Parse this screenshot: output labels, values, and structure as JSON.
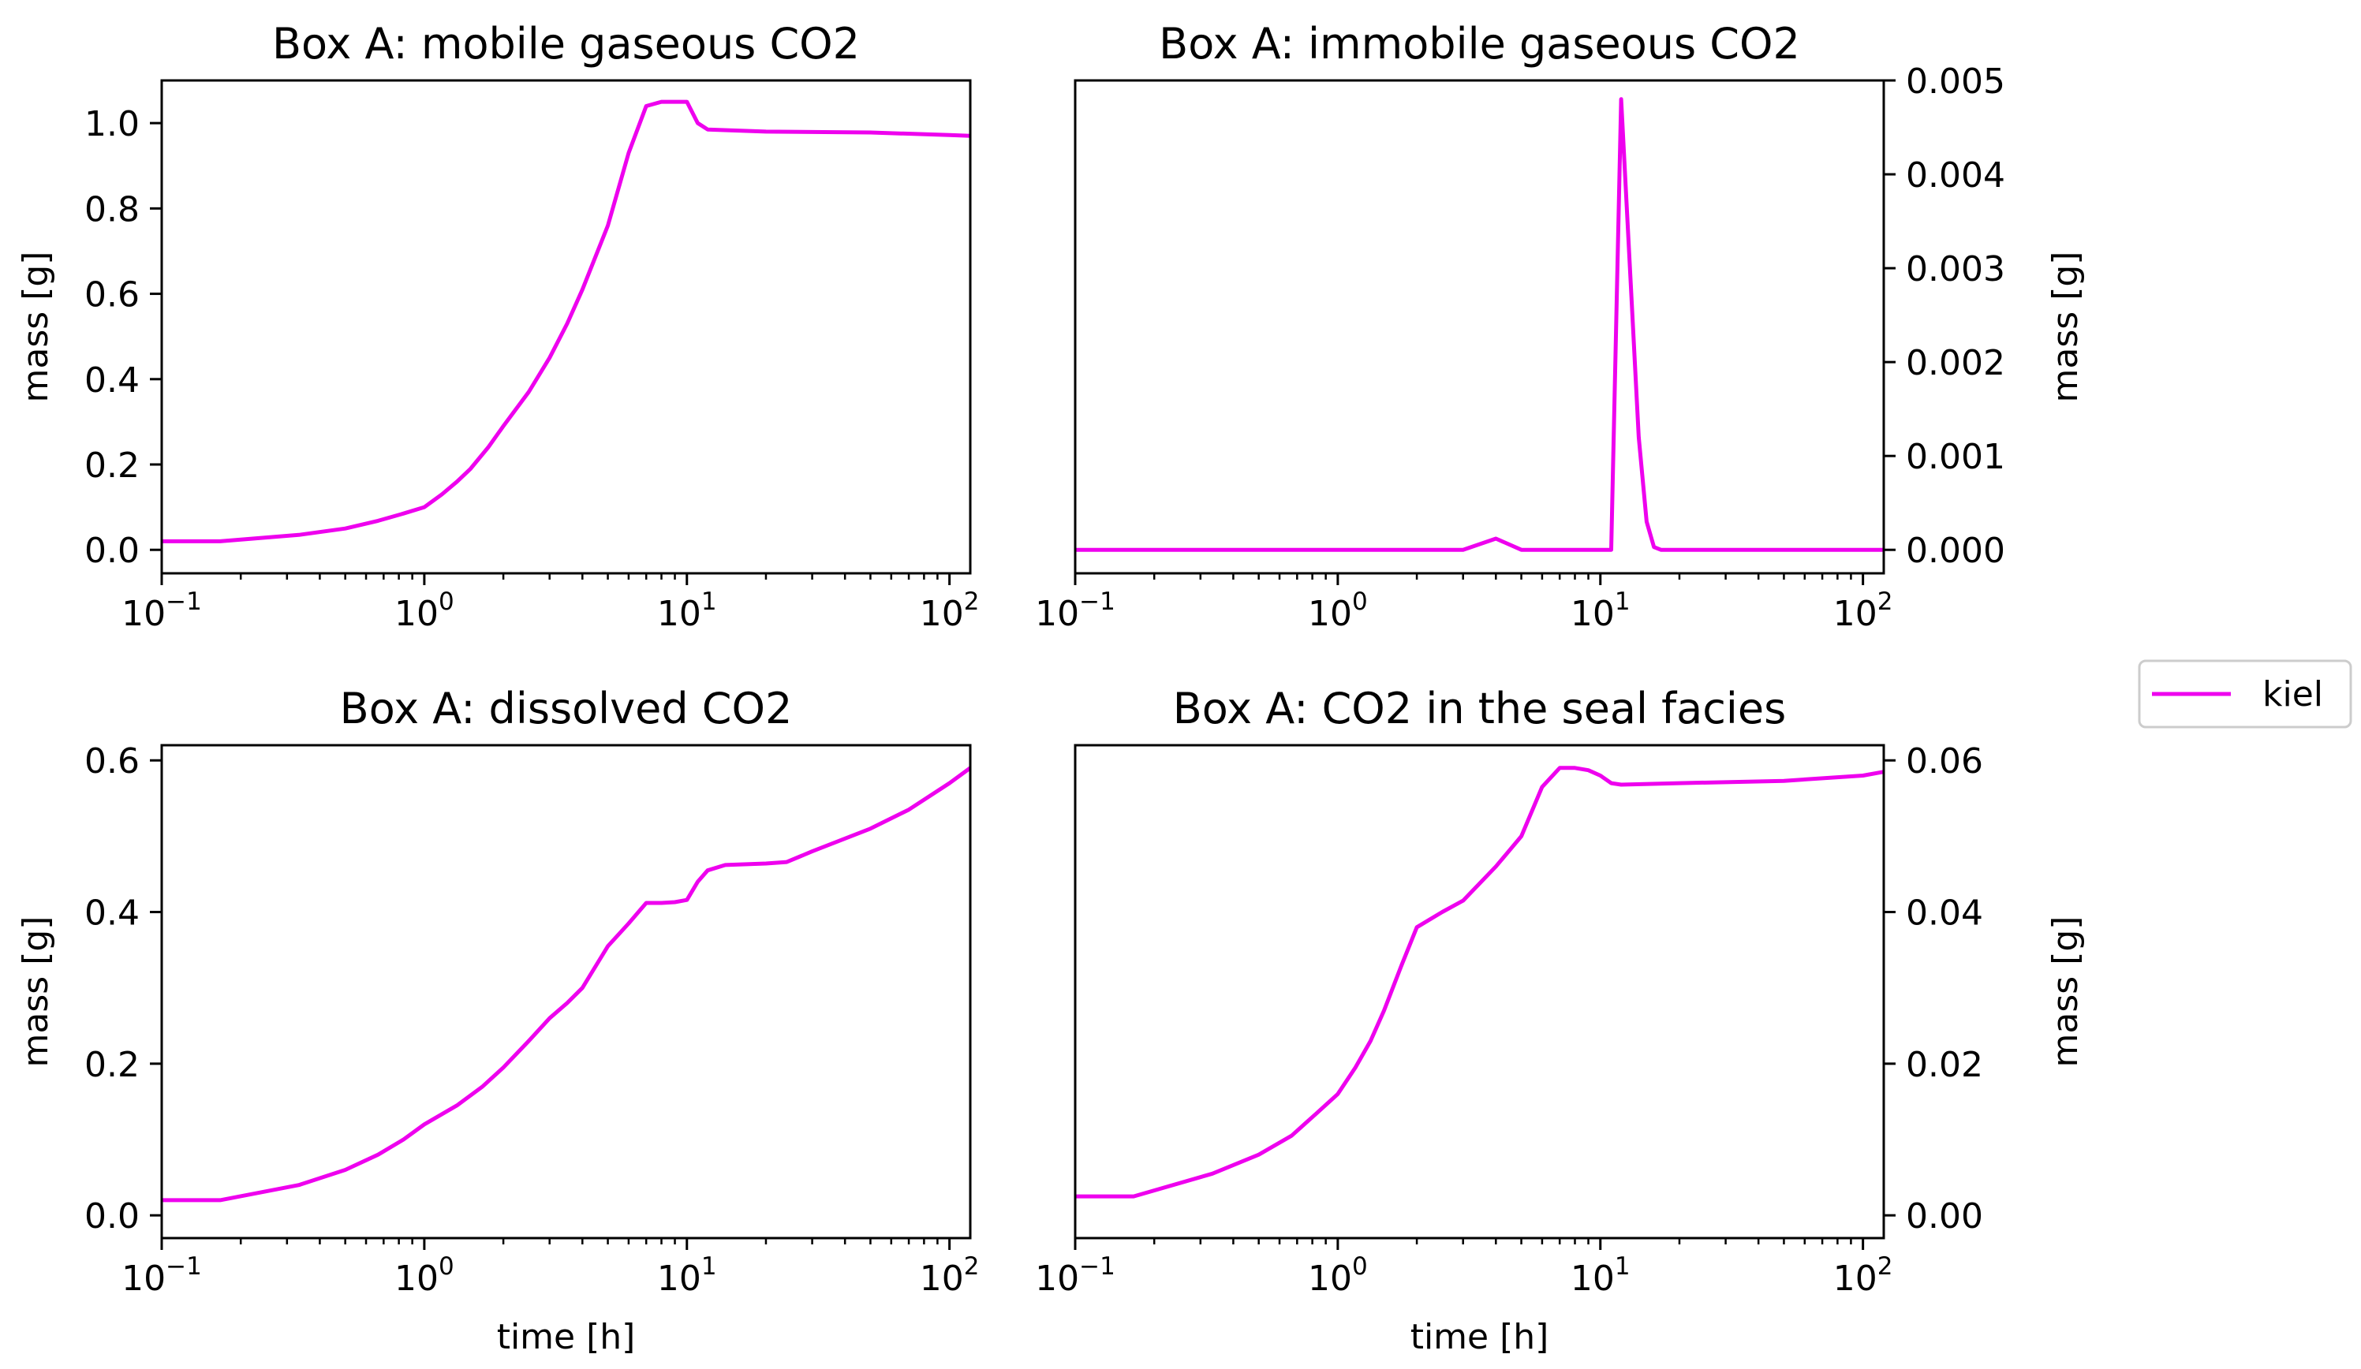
{
  "legend": {
    "label": "kiel",
    "color": "#ee00ee"
  },
  "chart_data": [
    {
      "type": "line",
      "title": "Box A: mobile gaseous CO2",
      "xlabel": "",
      "ylabel": "mass [g]",
      "xscale": "log",
      "xlim": [
        0.1,
        120
      ],
      "ylim": [
        -0.055,
        1.1
      ],
      "y_axis_side": "left",
      "xticks": [
        {
          "value": 0.1,
          "base": "10",
          "exp": "−1"
        },
        {
          "value": 1,
          "base": "10",
          "exp": "0"
        },
        {
          "value": 10,
          "base": "10",
          "exp": "1"
        },
        {
          "value": 100,
          "base": "10",
          "exp": "2"
        }
      ],
      "yticks": [
        {
          "value": 0.0,
          "label": "0.0"
        },
        {
          "value": 0.2,
          "label": "0.2"
        },
        {
          "value": 0.4,
          "label": "0.4"
        },
        {
          "value": 0.6,
          "label": "0.6"
        },
        {
          "value": 0.8,
          "label": "0.8"
        },
        {
          "value": 1.0,
          "label": "1.0"
        }
      ],
      "series": [
        {
          "name": "kiel",
          "color": "#ee00ee",
          "points": [
            [
              0.1,
              0.02
            ],
            [
              0.167,
              0.02
            ],
            [
              0.333,
              0.035
            ],
            [
              0.5,
              0.05
            ],
            [
              0.667,
              0.068
            ],
            [
              0.833,
              0.085
            ],
            [
              1.0,
              0.1
            ],
            [
              1.167,
              0.13
            ],
            [
              1.333,
              0.16
            ],
            [
              1.5,
              0.19
            ],
            [
              1.75,
              0.24
            ],
            [
              2.0,
              0.29
            ],
            [
              2.5,
              0.37
            ],
            [
              3.0,
              0.45
            ],
            [
              3.5,
              0.53
            ],
            [
              4.0,
              0.61
            ],
            [
              5.0,
              0.76
            ],
            [
              6.0,
              0.93
            ],
            [
              7.0,
              1.04
            ],
            [
              8.0,
              1.05
            ],
            [
              9.0,
              1.05
            ],
            [
              10.0,
              1.05
            ],
            [
              11.0,
              1.0
            ],
            [
              12.0,
              0.985
            ],
            [
              20.0,
              0.98
            ],
            [
              50.0,
              0.978
            ],
            [
              100.0,
              0.972
            ],
            [
              120.0,
              0.97
            ]
          ]
        }
      ]
    },
    {
      "type": "line",
      "title": "Box A: immobile gaseous CO2",
      "xlabel": "",
      "ylabel": "mass [g]",
      "xscale": "log",
      "xlim": [
        0.1,
        120
      ],
      "ylim": [
        -0.00025,
        0.005
      ],
      "y_axis_side": "right",
      "xticks": [
        {
          "value": 0.1,
          "base": "10",
          "exp": "−1"
        },
        {
          "value": 1,
          "base": "10",
          "exp": "0"
        },
        {
          "value": 10,
          "base": "10",
          "exp": "1"
        },
        {
          "value": 100,
          "base": "10",
          "exp": "2"
        }
      ],
      "yticks": [
        {
          "value": 0.0,
          "label": "0.000"
        },
        {
          "value": 0.001,
          "label": "0.001"
        },
        {
          "value": 0.002,
          "label": "0.002"
        },
        {
          "value": 0.003,
          "label": "0.003"
        },
        {
          "value": 0.004,
          "label": "0.004"
        },
        {
          "value": 0.005,
          "label": "0.005"
        }
      ],
      "series": [
        {
          "name": "kiel",
          "color": "#ee00ee",
          "points": [
            [
              0.1,
              0.0
            ],
            [
              3.0,
              0.0
            ],
            [
              4.0,
              0.00012
            ],
            [
              5.0,
              0.0
            ],
            [
              11.0,
              0.0
            ],
            [
              12.0,
              0.0048
            ],
            [
              14.0,
              0.0012
            ],
            [
              15.0,
              0.0003
            ],
            [
              16.0,
              3e-05
            ],
            [
              17.0,
              0.0
            ],
            [
              120.0,
              0.0
            ]
          ]
        }
      ]
    },
    {
      "type": "line",
      "title": "Box A: dissolved CO2",
      "xlabel": "time [h]",
      "ylabel": "mass [g]",
      "xscale": "log",
      "xlim": [
        0.1,
        120
      ],
      "ylim": [
        -0.03,
        0.62
      ],
      "y_axis_side": "left",
      "xticks": [
        {
          "value": 0.1,
          "base": "10",
          "exp": "−1"
        },
        {
          "value": 1,
          "base": "10",
          "exp": "0"
        },
        {
          "value": 10,
          "base": "10",
          "exp": "1"
        },
        {
          "value": 100,
          "base": "10",
          "exp": "2"
        }
      ],
      "yticks": [
        {
          "value": 0.0,
          "label": "0.0"
        },
        {
          "value": 0.2,
          "label": "0.2"
        },
        {
          "value": 0.4,
          "label": "0.4"
        },
        {
          "value": 0.6,
          "label": "0.6"
        }
      ],
      "series": [
        {
          "name": "kiel",
          "color": "#ee00ee",
          "points": [
            [
              0.1,
              0.02
            ],
            [
              0.167,
              0.02
            ],
            [
              0.333,
              0.04
            ],
            [
              0.5,
              0.06
            ],
            [
              0.667,
              0.08
            ],
            [
              0.833,
              0.1
            ],
            [
              1.0,
              0.12
            ],
            [
              1.333,
              0.145
            ],
            [
              1.667,
              0.17
            ],
            [
              2.0,
              0.195
            ],
            [
              2.5,
              0.23
            ],
            [
              3.0,
              0.26
            ],
            [
              3.5,
              0.28
            ],
            [
              4.0,
              0.3
            ],
            [
              5.0,
              0.355
            ],
            [
              6.0,
              0.385
            ],
            [
              7.0,
              0.412
            ],
            [
              8.0,
              0.412
            ],
            [
              9.0,
              0.413
            ],
            [
              10.0,
              0.416
            ],
            [
              11.0,
              0.44
            ],
            [
              12.0,
              0.455
            ],
            [
              14.0,
              0.462
            ],
            [
              20.0,
              0.464
            ],
            [
              24.0,
              0.466
            ],
            [
              30.0,
              0.48
            ],
            [
              50.0,
              0.51
            ],
            [
              70.0,
              0.535
            ],
            [
              100.0,
              0.57
            ],
            [
              120.0,
              0.59
            ]
          ]
        }
      ]
    },
    {
      "type": "line",
      "title": "Box A: CO2 in the seal facies",
      "xlabel": "time [h]",
      "ylabel": "mass [g]",
      "xscale": "log",
      "xlim": [
        0.1,
        120
      ],
      "ylim": [
        -0.003,
        0.062
      ],
      "y_axis_side": "right",
      "xticks": [
        {
          "value": 0.1,
          "base": "10",
          "exp": "−1"
        },
        {
          "value": 1,
          "base": "10",
          "exp": "0"
        },
        {
          "value": 10,
          "base": "10",
          "exp": "1"
        },
        {
          "value": 100,
          "base": "10",
          "exp": "2"
        }
      ],
      "yticks": [
        {
          "value": 0.0,
          "label": "0.00"
        },
        {
          "value": 0.02,
          "label": "0.02"
        },
        {
          "value": 0.04,
          "label": "0.04"
        },
        {
          "value": 0.06,
          "label": "0.06"
        }
      ],
      "series": [
        {
          "name": "kiel",
          "color": "#ee00ee",
          "points": [
            [
              0.1,
              0.0025
            ],
            [
              0.167,
              0.0025
            ],
            [
              0.333,
              0.0055
            ],
            [
              0.5,
              0.008
            ],
            [
              0.667,
              0.0105
            ],
            [
              0.833,
              0.0135
            ],
            [
              1.0,
              0.016
            ],
            [
              1.167,
              0.0195
            ],
            [
              1.333,
              0.023
            ],
            [
              1.5,
              0.027
            ],
            [
              1.75,
              0.033
            ],
            [
              2.0,
              0.038
            ],
            [
              2.5,
              0.04
            ],
            [
              3.0,
              0.0415
            ],
            [
              4.0,
              0.046
            ],
            [
              5.0,
              0.05
            ],
            [
              6.0,
              0.0565
            ],
            [
              7.0,
              0.059
            ],
            [
              8.0,
              0.059
            ],
            [
              9.0,
              0.0587
            ],
            [
              10.0,
              0.058
            ],
            [
              11.0,
              0.057
            ],
            [
              12.0,
              0.0568
            ],
            [
              20.0,
              0.057
            ],
            [
              50.0,
              0.0573
            ],
            [
              100.0,
              0.058
            ],
            [
              120.0,
              0.0585
            ]
          ]
        }
      ]
    }
  ]
}
